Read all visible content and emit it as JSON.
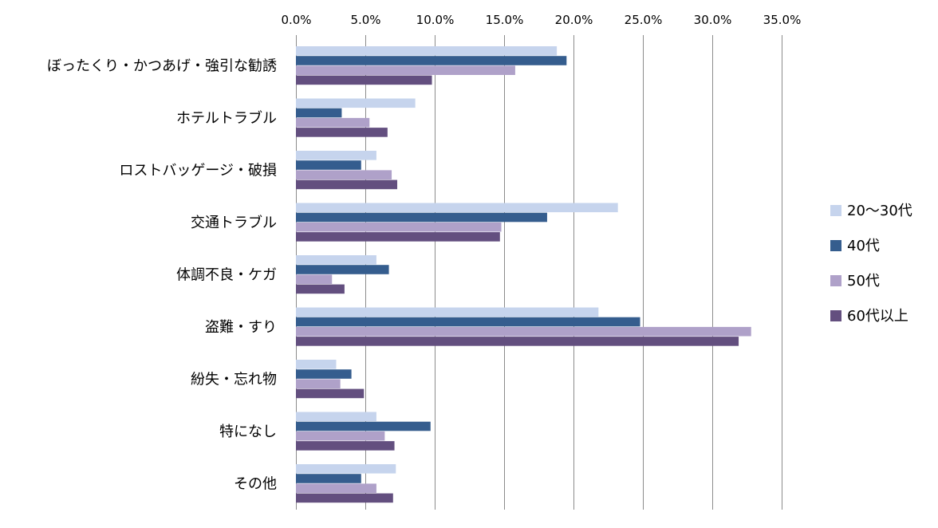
{
  "chart_data": {
    "type": "bar",
    "orientation": "horizontal",
    "categories": [
      "ぼったくり・かつあげ・強引な勧誘",
      "ホテルトラブル",
      "ロストバッゲージ・破損",
      "交通トラブル",
      "体調不良・ケガ",
      "盗難・すり",
      "紛失・忘れ物",
      "特になし",
      "その他"
    ],
    "series": [
      {
        "name": "20～30代",
        "color": "#c6d4ed",
        "values": [
          18.8,
          8.6,
          5.8,
          23.2,
          5.8,
          21.8,
          2.9,
          5.8,
          7.2
        ]
      },
      {
        "name": "40代",
        "color": "#355d8e",
        "values": [
          19.5,
          3.3,
          4.7,
          18.1,
          6.7,
          24.8,
          4.0,
          9.7,
          4.7
        ]
      },
      {
        "name": "50代",
        "color": "#afa1c9",
        "values": [
          15.8,
          5.3,
          6.9,
          14.8,
          2.6,
          32.8,
          3.2,
          6.4,
          5.8
        ]
      },
      {
        "name": "60代以上",
        "color": "#634f7f",
        "values": [
          9.8,
          6.6,
          7.3,
          14.7,
          3.5,
          31.9,
          4.9,
          7.1,
          7.0
        ]
      }
    ],
    "x_ticks": [
      "0.0%",
      "5.0%",
      "10.0%",
      "15.0%",
      "20.0%",
      "25.0%",
      "30.0%",
      "35.0%"
    ],
    "xlim": [
      0,
      35
    ],
    "grid": true,
    "legend_position": "right",
    "title": "",
    "xlabel": "",
    "ylabel": ""
  }
}
